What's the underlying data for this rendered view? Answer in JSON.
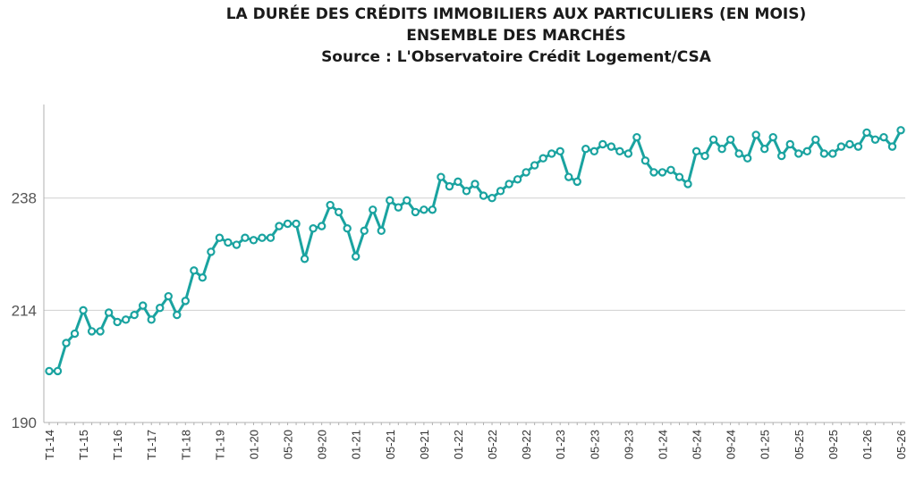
{
  "chart_data": {
    "type": "line",
    "title_lines": [
      "LA DURÉE DES CRÉDITS IMMOBILIERS AUX PARTICULIERS (EN MOIS)",
      "ENSEMBLE DES MARCHÉS",
      "Source : L'Observatoire Crédit Logement/CSA"
    ],
    "ylim": [
      190,
      258
    ],
    "yticks": [
      190,
      214,
      238
    ],
    "grid": true,
    "line_color": "#1aa3a0",
    "x_tick_labels": [
      "T1-14",
      "T1-15",
      "T1-16",
      "T1-17",
      "T1-18",
      "T1-19",
      "01-20",
      "05-20",
      "09-20",
      "01-21",
      "05-21",
      "09-21",
      "01-22",
      "05-22",
      "09-22",
      "01-23",
      "05-23",
      "09-23",
      "01-24",
      "05-24",
      "09-24",
      "01-25",
      "05-25",
      "09-25",
      "01-26",
      "05-26"
    ],
    "series": [
      {
        "values": [
          201,
          201,
          207,
          209,
          214,
          209.5,
          209.5,
          213.5,
          211.5,
          212,
          213,
          215,
          212,
          214.5,
          217,
          213,
          216,
          222.5,
          221,
          226.5,
          229.5,
          228.5,
          228,
          229.5,
          229,
          229.5,
          229.5,
          232,
          232.5,
          232.5,
          225,
          231.5,
          232,
          236.5,
          235,
          231.5,
          225.5,
          231,
          235.5,
          231,
          237.5,
          236,
          237.5,
          235,
          235.5,
          235.5,
          242.5,
          240.5,
          241.5,
          239.5,
          241,
          238.5,
          238,
          239.5,
          241,
          242,
          243.5,
          245,
          246.5,
          247.5,
          248,
          242.5,
          241.5,
          248.5,
          248,
          249.5,
          249,
          248,
          247.5,
          251,
          246,
          243.5,
          243.5,
          244,
          242.5,
          241,
          248,
          247,
          250.5,
          248.5,
          250.5,
          247.5,
          246.5,
          251.5,
          248.5,
          251,
          247,
          249.5,
          247.5,
          248,
          250.5,
          247.5,
          247.5,
          249,
          249.5,
          249,
          252,
          250.5,
          251,
          249,
          252.5
        ]
      }
    ]
  }
}
